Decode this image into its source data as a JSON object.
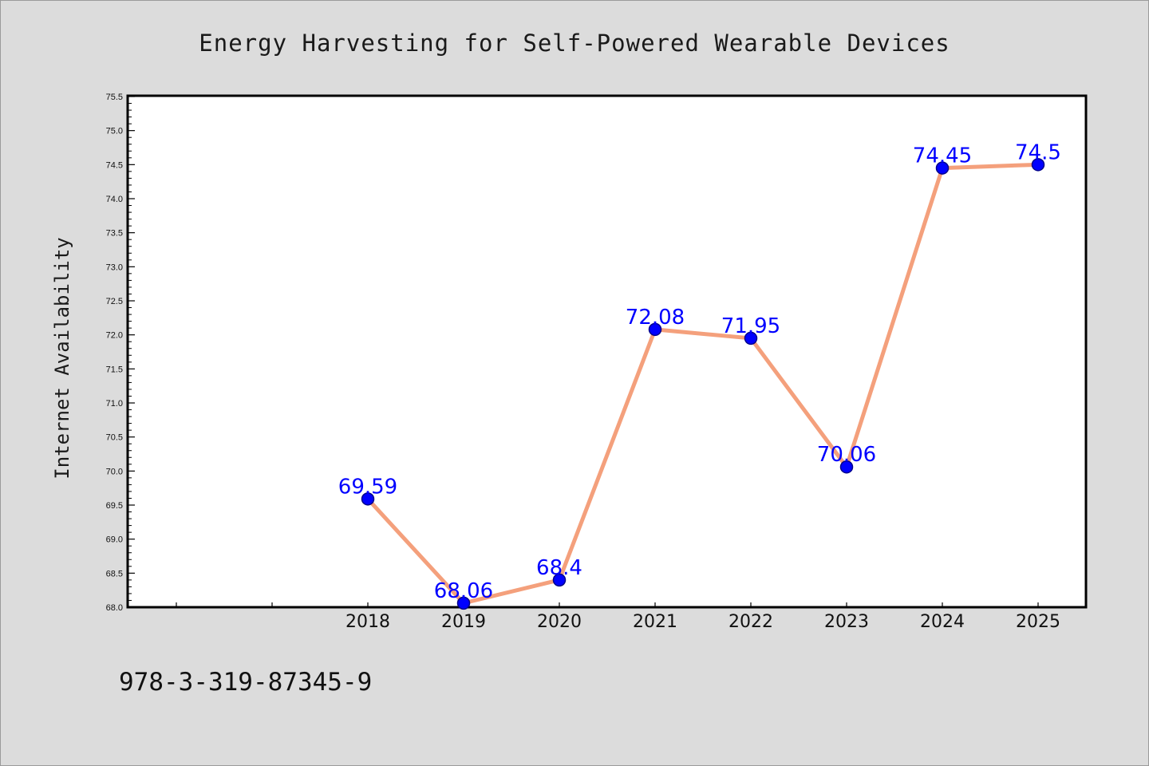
{
  "chart_data": {
    "type": "line",
    "title": "Energy Harvesting for Self-Powered Wearable Devices",
    "xlabel": "",
    "ylabel": "Internet Availability",
    "categories": [
      "2018",
      "2019",
      "2020",
      "2021",
      "2022",
      "2023",
      "2024",
      "2025"
    ],
    "values": [
      69.59,
      68.06,
      68.4,
      72.08,
      71.95,
      70.06,
      74.45,
      74.5
    ],
    "data_labels": [
      "69.59",
      "68.06",
      "68.4",
      "72.08",
      "71.95",
      "70.06",
      "74.45",
      "74.5"
    ],
    "ylim": [
      68.0,
      75.5
    ],
    "yticks": [
      "68.0",
      "68.5",
      "69.0",
      "69.5",
      "70.0",
      "70.5",
      "71.0",
      "71.5",
      "72.0",
      "72.5",
      "73.0",
      "73.5",
      "74.0",
      "74.5",
      "75.0",
      "75.5"
    ],
    "grid": false,
    "legend": "none",
    "colors": {
      "line": "#f4a07c",
      "marker": "#0000ff",
      "marker_edge": "#00008b",
      "data_label": "#0000ff",
      "background": "#dcdcdc",
      "plot_area": "#ffffff"
    }
  },
  "footer": {
    "code": "978-3-319-87345-9"
  }
}
